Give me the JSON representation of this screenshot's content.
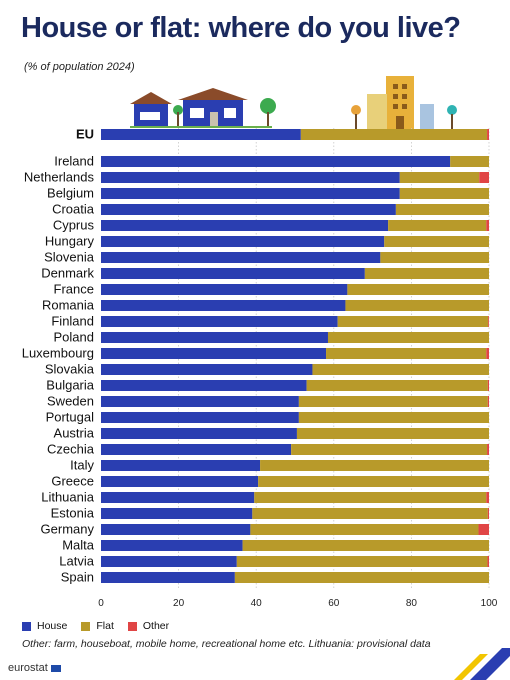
{
  "title": "House or flat: where do you live?",
  "subtitle": "(% of population 2024)",
  "legend": {
    "house": "House",
    "flat": "Flat",
    "other": "Other"
  },
  "footnote": "Other: farm, houseboat, mobile home, recreational home etc. Lithuania: provisional data",
  "logo": "eurostat",
  "colors": {
    "house": "#2a3eb1",
    "flat": "#b89a2a",
    "other": "#e04545",
    "title": "#1b2a5e"
  },
  "chart_data": {
    "type": "bar",
    "orientation": "horizontal",
    "stacked": true,
    "xlim": [
      0,
      100
    ],
    "xticks": [
      0,
      20,
      40,
      60,
      80,
      100
    ],
    "grid": "vertical dotted",
    "legend_position": "bottom-left",
    "categories": [
      "EU",
      "Ireland",
      "Netherlands",
      "Belgium",
      "Croatia",
      "Cyprus",
      "Hungary",
      "Slovenia",
      "Denmark",
      "France",
      "Romania",
      "Finland",
      "Poland",
      "Luxembourg",
      "Slovakia",
      "Bulgaria",
      "Sweden",
      "Portugal",
      "Austria",
      "Czechia",
      "Italy",
      "Greece",
      "Lithuania",
      "Estonia",
      "Germany",
      "Malta",
      "Latvia",
      "Spain"
    ],
    "series": [
      {
        "name": "House",
        "values": [
          51.5,
          90,
          77,
          77,
          76,
          74,
          73,
          72,
          68,
          63.5,
          63,
          61,
          58.5,
          58,
          54.5,
          53,
          51,
          51,
          50.5,
          49,
          41,
          40.5,
          39.5,
          39,
          38.5,
          36.5,
          35,
          34.5
        ]
      },
      {
        "name": "Flat",
        "values": [
          48,
          10,
          20.5,
          23,
          24,
          25.3,
          27,
          28,
          32,
          36.5,
          37,
          38.8,
          41.5,
          41.3,
          45.5,
          46.7,
          48.7,
          49,
          49.5,
          50.5,
          59,
          59.5,
          59.8,
          60.7,
          58.8,
          63.5,
          64.6,
          65.5
        ]
      },
      {
        "name": "Other",
        "values": [
          0.5,
          0,
          2.5,
          0,
          0,
          0.7,
          0,
          0,
          0,
          0,
          0,
          0.2,
          0,
          0.7,
          0,
          0.3,
          0.3,
          0,
          0,
          0.5,
          0,
          0,
          0.7,
          0.3,
          2.7,
          0,
          0.4,
          0
        ]
      }
    ]
  }
}
